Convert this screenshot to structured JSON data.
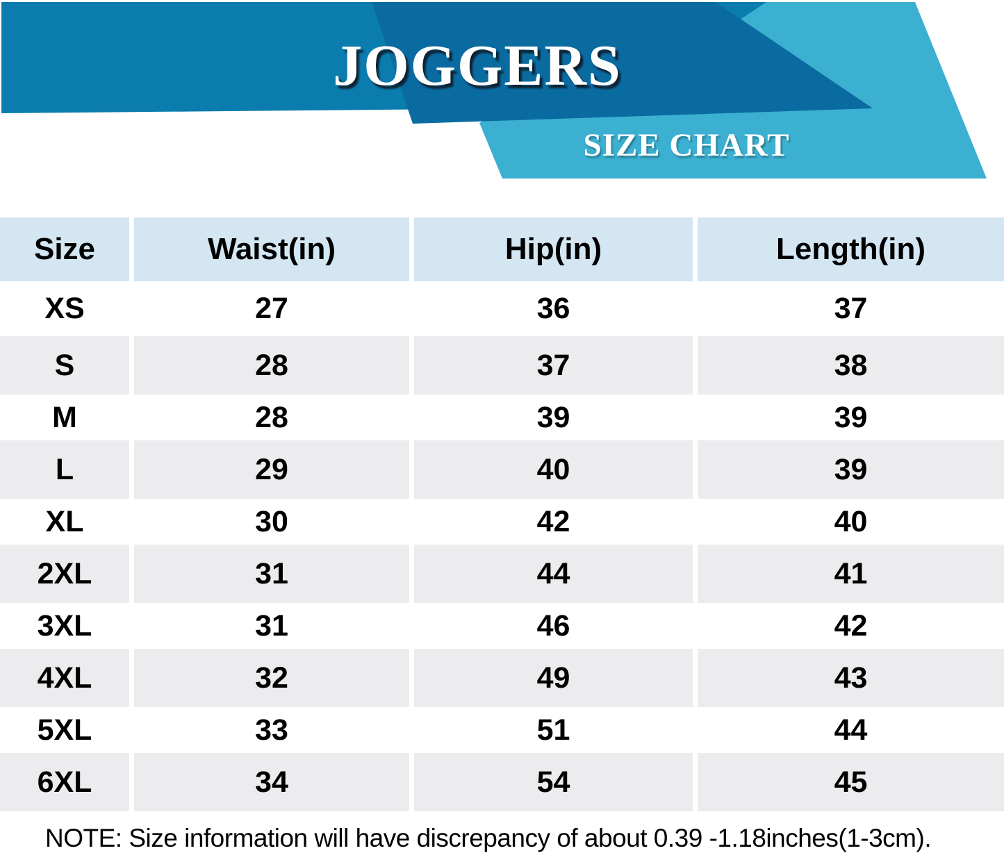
{
  "header": {
    "title": "JOGGERS",
    "subtitle": "SIZE CHART",
    "colors": {
      "band_medium": "#0b7cae",
      "band_dark": "#0a6ba1",
      "band_cyan": "#3cb0d1",
      "title_text": "#ffffff",
      "title_shadow": "#0c1322"
    }
  },
  "table": {
    "columns": [
      "Size",
      "Waist(in)",
      "Hip(in)",
      "Length(in)"
    ],
    "header_bg": "#d3e6f2",
    "stripe_bg": "#ececef",
    "rows": [
      {
        "size": "XS",
        "waist": "27",
        "hip": "36",
        "length": "37"
      },
      {
        "size": "S",
        "waist": "28",
        "hip": "37",
        "length": "38"
      },
      {
        "size": "M",
        "waist": "28",
        "hip": "39",
        "length": "39"
      },
      {
        "size": "L",
        "waist": "29",
        "hip": "40",
        "length": "39"
      },
      {
        "size": "XL",
        "waist": "30",
        "hip": "42",
        "length": "40"
      },
      {
        "size": "2XL",
        "waist": "31",
        "hip": "44",
        "length": "41"
      },
      {
        "size": "3XL",
        "waist": "31",
        "hip": "46",
        "length": "42"
      },
      {
        "size": "4XL",
        "waist": "32",
        "hip": "49",
        "length": "43"
      },
      {
        "size": "5XL",
        "waist": "33",
        "hip": "51",
        "length": "44"
      },
      {
        "size": "6XL",
        "waist": "34",
        "hip": "54",
        "length": "45"
      }
    ]
  },
  "note": {
    "text": "NOTE: Size information will have discrepancy of about 0.39 -1.18inches(1-3cm)."
  }
}
